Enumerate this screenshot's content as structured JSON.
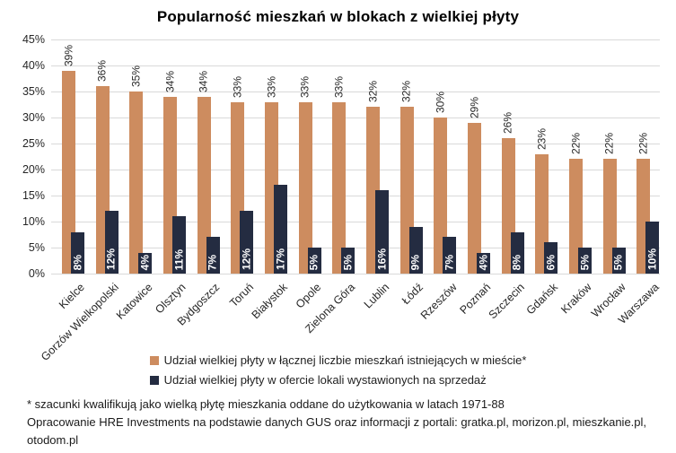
{
  "chart_data": {
    "type": "bar",
    "title": "Popularność mieszkań w blokach z wielkiej płyty",
    "categories": [
      "Kielce",
      "Gorzów Wielkopolski",
      "Katowice",
      "Olsztyn",
      "Bydgoszcz",
      "Toruń",
      "Białystok",
      "Opole",
      "Zielona Góra",
      "Lublin",
      "Łódź",
      "Rzeszów",
      "Poznań",
      "Szczecin",
      "Gdańsk",
      "Kraków",
      "Wrocław",
      "Warszawa"
    ],
    "series": [
      {
        "name": "Udział wielkiej płyty w łącznej liczbie mieszkań istniejących w mieście*",
        "color": "#CD8C5F",
        "values": [
          39,
          36,
          35,
          34,
          34,
          33,
          33,
          33,
          33,
          32,
          32,
          30,
          29,
          26,
          23,
          22,
          22,
          22
        ],
        "data_labels": [
          "39%",
          "36%",
          "35%",
          "34%",
          "34%",
          "33%",
          "33%",
          "33%",
          "33%",
          "32%",
          "32%",
          "30%",
          "29%",
          "26%",
          "23%",
          "22%",
          "22%",
          "22%"
        ],
        "label_position": "above-rotated",
        "label_color": "#262626"
      },
      {
        "name": "Udział wielkiej płyty w ofercie lokali wystawionych na sprzedaż",
        "color": "#242C41",
        "values": [
          8,
          12,
          4,
          11,
          7,
          12,
          17,
          5,
          5,
          16,
          9,
          7,
          4,
          8,
          6,
          5,
          5,
          10
        ],
        "data_labels": [
          "8%",
          "12%",
          "4%",
          "11%",
          "7%",
          "12%",
          "17%",
          "5%",
          "5%",
          "16%",
          "9%",
          "7%",
          "4%",
          "8%",
          "6%",
          "5%",
          "5%",
          "10%"
        ],
        "label_position": "inside-bottom-rotated",
        "label_color": "#ffffff"
      }
    ],
    "xlabel": "",
    "ylabel": "",
    "ylim": [
      0,
      45
    ],
    "ytick_step": 5,
    "ytick_labels": [
      "0%",
      "5%",
      "10%",
      "15%",
      "20%",
      "25%",
      "30%",
      "35%",
      "40%",
      "45%"
    ],
    "grid": true,
    "gridline_color": "#D9D9D9",
    "legend_position": "bottom"
  },
  "footnote": {
    "lines": [
      "* szacunki kwalifikują jako wielką płytę mieszkania oddane do użytkowania w latach 1971-88",
      "Opracowanie HRE Investments na podstawie danych GUS oraz informacji z portali: gratka.pl, morizon.pl, mieszkanie.pl,",
      "otodom.pl"
    ]
  }
}
